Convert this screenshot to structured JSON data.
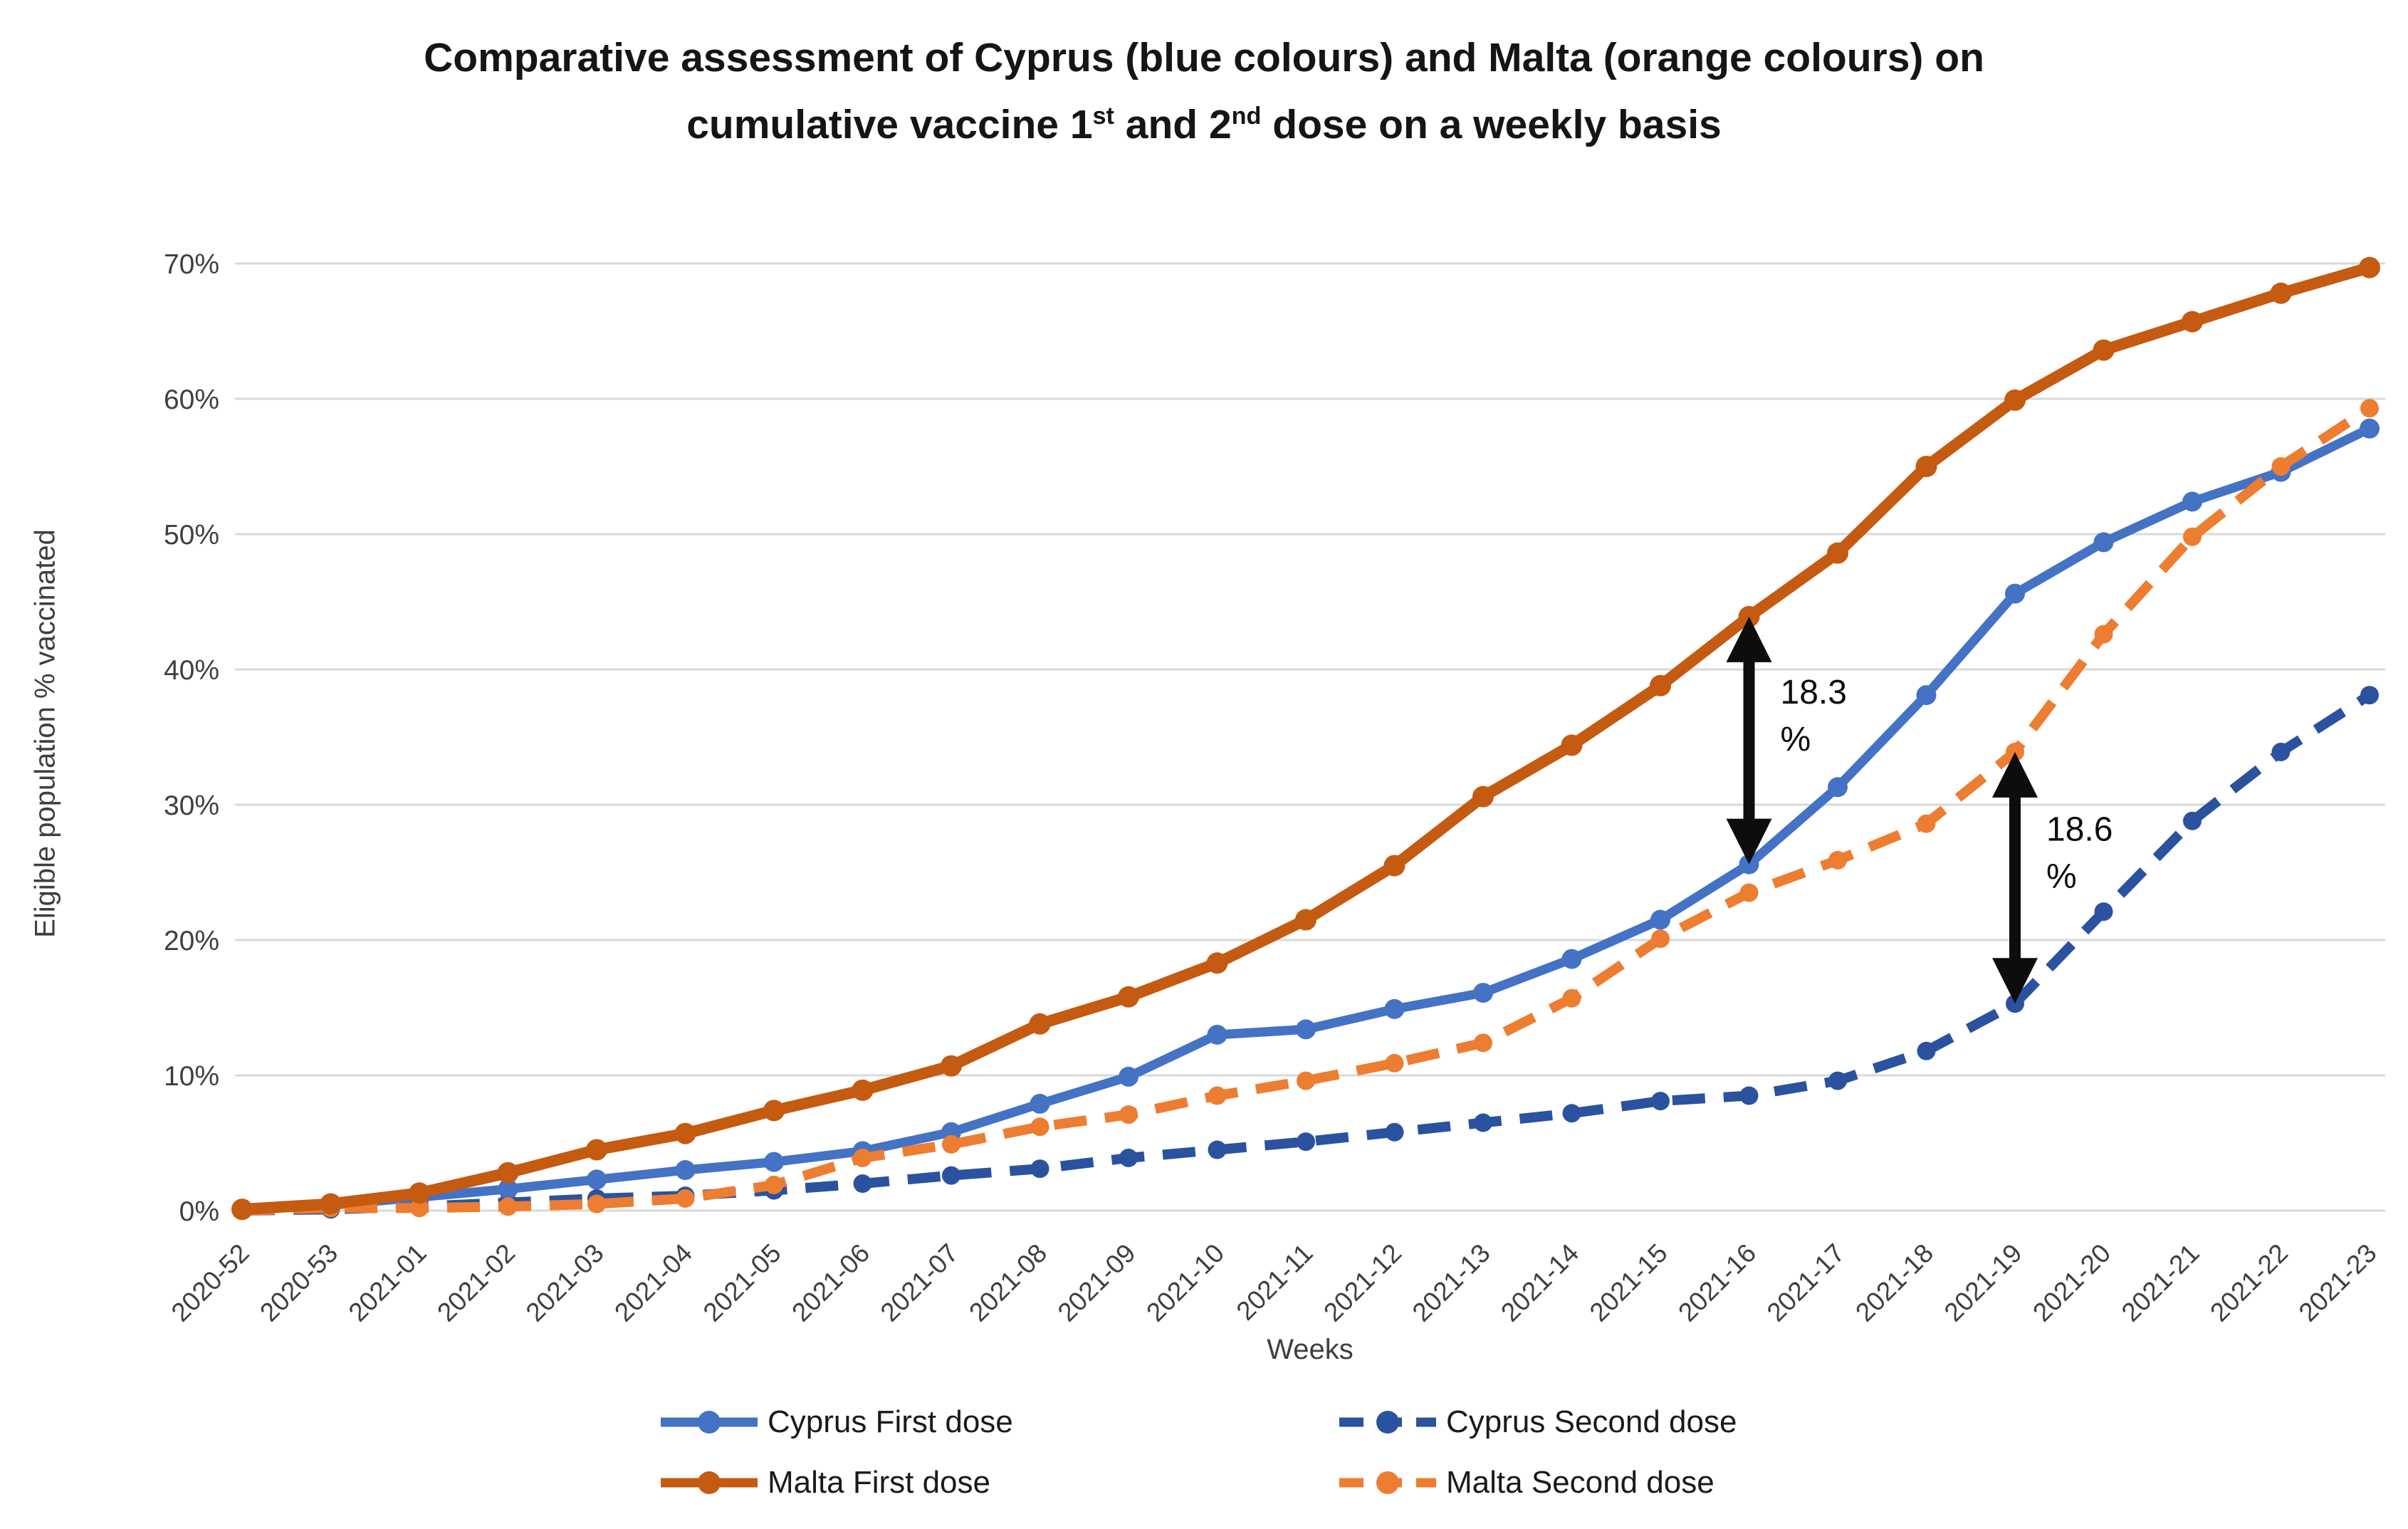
{
  "title": {
    "line1": "Comparative assessment of Cyprus (blue colours) and Malta (orange colours) on",
    "line2_pre": "cumulative vaccine 1",
    "line2_sup1": "st",
    "line2_mid": " and 2",
    "line2_sup2": "nd",
    "line2_post": " dose on a weekly basis"
  },
  "y_axis_title": "Eligible population % vaccinated",
  "x_axis_title": "Weeks",
  "colors": {
    "cyprus_first": "#4472C4",
    "malta_first": "#C55A11",
    "cyprus_second": "#2A529E",
    "malta_second": "#ED7D31",
    "gridline": "#D9D9D9",
    "tick_text": "#3f3f3f",
    "annotation": "#0d0d0d"
  },
  "legend": [
    {
      "label": "Cyprus First dose",
      "color": "#4472C4",
      "dashed": false,
      "col": 0,
      "row": 0
    },
    {
      "label": "Cyprus Second dose",
      "color": "#2A529E",
      "dashed": true,
      "col": 1,
      "row": 0
    },
    {
      "label": "Malta First dose",
      "color": "#C55A11",
      "dashed": false,
      "col": 0,
      "row": 1
    },
    {
      "label": "Malta Second dose",
      "color": "#ED7D31",
      "dashed": true,
      "col": 1,
      "row": 1
    }
  ],
  "chart_data": {
    "type": "line",
    "title": "Comparative assessment of Cyprus (blue colours) and Malta (orange colours) on cumulative vaccine 1st and 2nd dose on a weekly basis",
    "xlabel": "Weeks",
    "ylabel": "Eligible population % vaccinated",
    "ylim": [
      0,
      70
    ],
    "y_ticks": [
      0,
      10,
      20,
      30,
      40,
      50,
      60,
      70
    ],
    "y_tick_labels": [
      "0%",
      "10%",
      "20%",
      "30%",
      "40%",
      "50%",
      "60%",
      "70%"
    ],
    "grid": "horizontal",
    "legend_position": "bottom",
    "categories": [
      "2020-52",
      "2020-53",
      "2021-01",
      "2021-02",
      "2021-03",
      "2021-04",
      "2021-05",
      "2021-06",
      "2021-07",
      "2021-08",
      "2021-09",
      "2021-10",
      "2021-11",
      "2021-12",
      "2021-13",
      "2021-14",
      "2021-15",
      "2021-16",
      "2021-17",
      "2021-18",
      "2021-19",
      "2021-20",
      "2021-21",
      "2021-22",
      "2021-23"
    ],
    "series": [
      {
        "name": "Cyprus Second dose",
        "color": "#2A529E",
        "style": "dashed",
        "line_width": 14,
        "marker_r": 13,
        "values": [
          0.0,
          0.1,
          0.3,
          0.6,
          0.9,
          1.1,
          1.5,
          2.0,
          2.6,
          3.1,
          3.9,
          4.5,
          5.1,
          5.8,
          6.5,
          7.2,
          8.1,
          8.5,
          9.6,
          11.8,
          15.3,
          22.1,
          28.8,
          33.9,
          38.1
        ]
      },
      {
        "name": "Cyprus First dose",
        "color": "#4472C4",
        "style": "solid",
        "line_width": 13,
        "marker_r": 14,
        "values": [
          0.1,
          0.4,
          1.0,
          1.6,
          2.3,
          3.0,
          3.6,
          4.4,
          5.8,
          7.9,
          9.9,
          13.0,
          13.4,
          14.9,
          16.1,
          18.6,
          21.5,
          25.6,
          31.3,
          38.1,
          45.6,
          49.4,
          52.4,
          54.6,
          57.8
        ]
      },
      {
        "name": "Malta Second dose",
        "color": "#ED7D31",
        "style": "dashed",
        "line_width": 14,
        "marker_r": 13,
        "values": [
          0.0,
          0.2,
          0.2,
          0.3,
          0.5,
          0.9,
          1.9,
          3.9,
          4.9,
          6.2,
          7.1,
          8.5,
          9.6,
          10.9,
          12.4,
          15.7,
          20.1,
          23.5,
          25.9,
          28.6,
          33.9,
          42.6,
          49.8,
          55.0,
          59.3
        ]
      },
      {
        "name": "Malta First dose",
        "color": "#C55A11",
        "style": "solid",
        "line_width": 16,
        "marker_r": 15,
        "values": [
          0.1,
          0.5,
          1.3,
          2.8,
          4.5,
          5.7,
          7.4,
          8.9,
          10.7,
          13.8,
          15.8,
          18.3,
          21.5,
          25.5,
          30.6,
          34.4,
          38.8,
          43.9,
          48.6,
          55.0,
          59.9,
          63.6,
          65.7,
          67.8,
          69.7
        ]
      }
    ],
    "annotations": [
      {
        "value": "18.3",
        "unit": "%",
        "x_category": "2021-16",
        "from_pct": 25.6,
        "to_pct": 43.9
      },
      {
        "value": "18.6",
        "unit": "%",
        "x_category": "2021-19",
        "from_pct": 15.3,
        "to_pct": 33.9
      }
    ]
  }
}
